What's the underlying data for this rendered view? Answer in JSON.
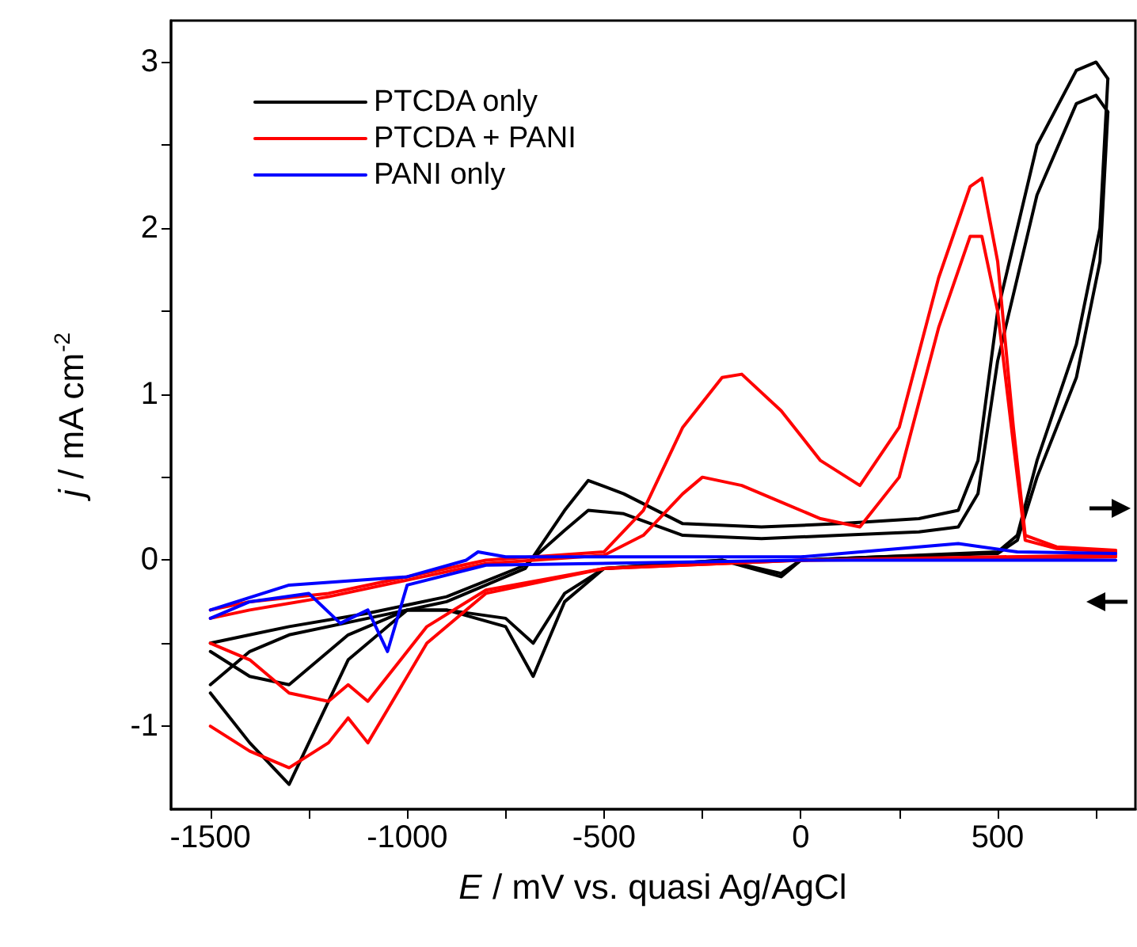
{
  "chart_data": {
    "type": "line",
    "xlabel": "E / mV vs. quasi Ag/AgCl",
    "ylabel": "j / mA cm$^{-2}$",
    "xlim": [
      -1600,
      850
    ],
    "ylim": [
      -1.5,
      3.25
    ],
    "xticks": [
      -1500,
      {
        "value": -1250,
        "label": null
      },
      -1000,
      {
        "value": -750,
        "label": null
      },
      -500,
      {
        "value": -250,
        "label": null
      },
      0,
      {
        "value": 250,
        "label": null
      },
      500,
      {
        "value": 750,
        "label": null
      }
    ],
    "yticks": [
      -1,
      {
        "value": -0.5,
        "label": null
      },
      0,
      {
        "value": 0.5,
        "label": null
      },
      1,
      {
        "value": 1.5,
        "label": null
      },
      2,
      {
        "value": 2.5,
        "label": null
      },
      3
    ],
    "legend": "top left",
    "marker": "none",
    "line_style": "solid",
    "series": [
      {
        "name": "PTCDA only",
        "color": "#000000",
        "x": [
          -1500,
          -1400,
          -1300,
          -1100,
          -900,
          -700,
          -600,
          -540,
          -450,
          -300,
          -100,
          100,
          300,
          400,
          450,
          500,
          600,
          700,
          750,
          780
        ],
        "values": [
          -0.75,
          -0.55,
          -0.45,
          -0.35,
          -0.25,
          -0.05,
          0.3,
          0.48,
          0.4,
          0.22,
          0.2,
          0.22,
          0.25,
          0.3,
          0.6,
          1.5,
          2.5,
          2.95,
          3.0,
          2.9
        ]
      },
      {
        "color": "#000000",
        "x": [
          -1500,
          -1400,
          -1300,
          -1150,
          -1000,
          -900,
          -750,
          -680,
          -600,
          -500,
          -200,
          -50,
          0,
          200,
          500,
          550,
          600,
          700,
          760,
          780
        ],
        "values": [
          -0.8,
          -1.1,
          -1.35,
          -0.6,
          -0.3,
          -0.3,
          -0.4,
          -0.7,
          -0.25,
          -0.05,
          0.0,
          -0.1,
          0.0,
          0.02,
          0.05,
          0.15,
          0.6,
          1.3,
          2.0,
          2.9
        ]
      },
      {
        "color": "#000000",
        "x": [
          -1500,
          -1400,
          -1300,
          -1100,
          -900,
          -700,
          -600,
          -540,
          -450,
          -300,
          -100,
          100,
          300,
          400,
          450,
          500,
          600,
          700,
          750,
          780
        ],
        "values": [
          -0.5,
          -0.45,
          -0.4,
          -0.32,
          -0.22,
          -0.03,
          0.18,
          0.3,
          0.28,
          0.15,
          0.13,
          0.15,
          0.17,
          0.2,
          0.4,
          1.2,
          2.2,
          2.75,
          2.8,
          2.7
        ]
      },
      {
        "color": "#000000",
        "x": [
          -1500,
          -1400,
          -1300,
          -1150,
          -1000,
          -900,
          -750,
          -680,
          -600,
          -500,
          -200,
          -50,
          0,
          200,
          500,
          550,
          600,
          700,
          760,
          780
        ],
        "values": [
          -0.55,
          -0.7,
          -0.75,
          -0.45,
          -0.3,
          -0.3,
          -0.35,
          -0.5,
          -0.2,
          -0.05,
          0.0,
          -0.08,
          0.0,
          0.02,
          0.04,
          0.12,
          0.5,
          1.1,
          1.8,
          2.7
        ]
      },
      {
        "name": "PTCDA + PANI",
        "color": "#ff0000",
        "x": [
          -1500,
          -1400,
          -1200,
          -1000,
          -800,
          -500,
          -400,
          -300,
          -200,
          -150,
          -50,
          50,
          150,
          250,
          350,
          430,
          460,
          500,
          540,
          570,
          650,
          800
        ],
        "values": [
          -0.3,
          -0.25,
          -0.2,
          -0.1,
          0.0,
          0.05,
          0.3,
          0.8,
          1.1,
          1.12,
          0.9,
          0.6,
          0.45,
          0.8,
          1.7,
          2.25,
          2.3,
          1.8,
          0.8,
          0.15,
          0.08,
          0.06
        ]
      },
      {
        "color": "#ff0000",
        "x": [
          -1500,
          -1400,
          -1300,
          -1200,
          -1150,
          -1100,
          -1050,
          -950,
          -800,
          -500,
          0,
          500,
          800
        ],
        "values": [
          -1.0,
          -1.15,
          -1.25,
          -1.1,
          -0.95,
          -1.1,
          -0.9,
          -0.5,
          -0.2,
          -0.05,
          0.0,
          0.02,
          0.03
        ]
      },
      {
        "color": "#ff0000",
        "x": [
          -1500,
          -1400,
          -1200,
          -1000,
          -800,
          -500,
          -400,
          -300,
          -250,
          -150,
          -50,
          50,
          150,
          250,
          350,
          430,
          460,
          500,
          540,
          570,
          650,
          800
        ],
        "values": [
          -0.35,
          -0.3,
          -0.22,
          -0.12,
          -0.02,
          0.03,
          0.15,
          0.4,
          0.5,
          0.45,
          0.35,
          0.25,
          0.2,
          0.5,
          1.4,
          1.95,
          1.95,
          1.5,
          0.7,
          0.12,
          0.07,
          0.05
        ]
      },
      {
        "color": "#ff0000",
        "x": [
          -1500,
          -1400,
          -1300,
          -1200,
          -1150,
          -1100,
          -1050,
          -950,
          -800,
          -500,
          0,
          500,
          800
        ],
        "values": [
          -0.5,
          -0.6,
          -0.8,
          -0.85,
          -0.75,
          -0.85,
          -0.7,
          -0.4,
          -0.18,
          -0.05,
          0.0,
          0.01,
          0.02
        ]
      },
      {
        "name": "PANI only",
        "color": "#0000ff",
        "x": [
          -1500,
          -1300,
          -1000,
          -850,
          -820,
          -750,
          0,
          400,
          550,
          800
        ],
        "values": [
          -0.3,
          -0.15,
          -0.1,
          0.0,
          0.05,
          0.02,
          0.02,
          0.1,
          0.05,
          0.04
        ]
      },
      {
        "color": "#0000ff",
        "x": [
          -1500,
          -1400,
          -1250,
          -1170,
          -1100,
          -1050,
          -1000,
          -800,
          0,
          800
        ],
        "values": [
          -0.35,
          -0.25,
          -0.2,
          -0.38,
          -0.3,
          -0.55,
          -0.15,
          -0.03,
          0.0,
          0.0
        ]
      }
    ]
  }
}
